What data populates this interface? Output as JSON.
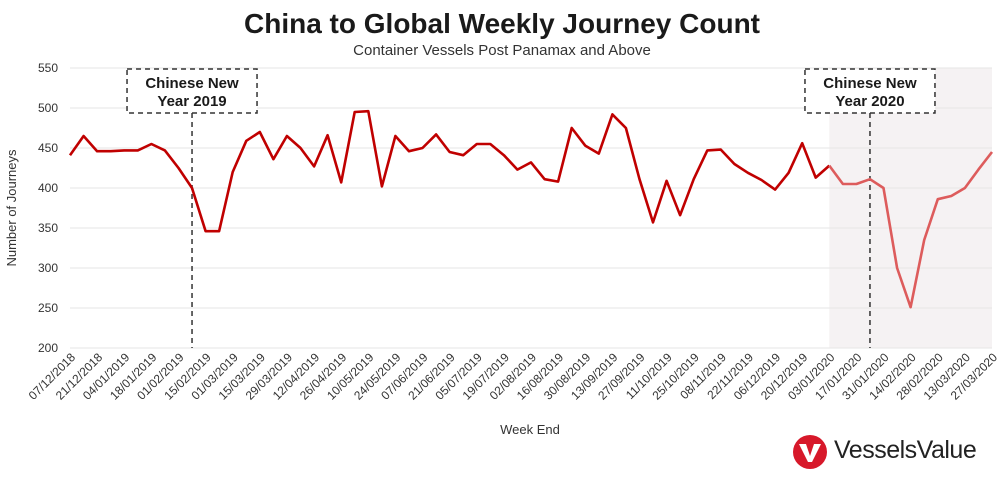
{
  "chart_data": {
    "type": "line",
    "title": "China to Global Weekly Journey Count",
    "subtitle": "Container Vessels Post Panamax and Above",
    "xlabel": "Week End",
    "ylabel": "Number of Journeys",
    "ylim": [
      200,
      550
    ],
    "yticks": [
      200,
      250,
      300,
      350,
      400,
      450,
      500,
      550
    ],
    "grid": "horizontal",
    "x_tick_labels": [
      "07/12/2018",
      "21/12/2018",
      "04/01/2019",
      "18/01/2019",
      "01/02/2019",
      "15/02/2019",
      "01/03/2019",
      "15/03/2019",
      "29/03/2019",
      "12/04/2019",
      "26/04/2019",
      "10/05/2019",
      "24/05/2019",
      "07/06/2019",
      "21/06/2019",
      "05/07/2019",
      "19/07/2019",
      "02/08/2019",
      "16/08/2019",
      "30/08/2019",
      "13/09/2019",
      "27/09/2019",
      "11/10/2019",
      "25/10/2019",
      "08/11/2019",
      "22/11/2019",
      "06/12/2019",
      "20/12/2019",
      "03/01/2020",
      "17/01/2020",
      "31/01/2020",
      "14/02/2020",
      "28/02/2020",
      "13/03/2020",
      "27/03/2020"
    ],
    "x": [
      "07/12/2018",
      "14/12/2018",
      "21/12/2018",
      "28/12/2018",
      "04/01/2019",
      "11/01/2019",
      "18/01/2019",
      "25/01/2019",
      "01/02/2019",
      "08/02/2019",
      "15/02/2019",
      "22/02/2019",
      "01/03/2019",
      "08/03/2019",
      "15/03/2019",
      "22/03/2019",
      "29/03/2019",
      "05/04/2019",
      "12/04/2019",
      "19/04/2019",
      "26/04/2019",
      "03/05/2019",
      "10/05/2019",
      "17/05/2019",
      "24/05/2019",
      "31/05/2019",
      "07/06/2019",
      "14/06/2019",
      "21/06/2019",
      "28/06/2019",
      "05/07/2019",
      "12/07/2019",
      "19/07/2019",
      "26/07/2019",
      "02/08/2019",
      "09/08/2019",
      "16/08/2019",
      "23/08/2019",
      "30/08/2019",
      "06/09/2019",
      "13/09/2019",
      "20/09/2019",
      "27/09/2019",
      "04/10/2019",
      "11/10/2019",
      "18/10/2019",
      "25/10/2019",
      "01/11/2019",
      "08/11/2019",
      "15/11/2019",
      "22/11/2019",
      "29/11/2019",
      "06/12/2019",
      "13/12/2019",
      "20/12/2019",
      "27/12/2019",
      "03/01/2020",
      "10/01/2020",
      "17/01/2020",
      "24/01/2020",
      "31/01/2020",
      "07/02/2020",
      "14/02/2020",
      "21/02/2020",
      "28/02/2020",
      "06/03/2020",
      "13/03/2020",
      "20/03/2020",
      "27/03/2020"
    ],
    "series": [
      {
        "values": [
          441,
          465,
          446,
          446,
          447,
          447,
          455,
          447,
          425,
          400,
          346,
          346,
          420,
          459,
          470,
          436,
          465,
          450,
          427,
          466,
          407,
          495,
          496,
          402,
          465,
          446,
          450,
          467,
          445,
          441,
          455,
          455,
          441,
          423,
          432,
          411,
          408,
          475,
          453,
          443,
          492,
          475,
          411,
          357,
          409,
          366,
          411,
          447,
          448,
          430,
          419,
          410,
          398,
          419,
          456,
          413,
          428,
          405,
          405,
          411,
          400,
          300,
          251,
          335,
          386,
          390,
          400,
          423,
          445
        ]
      }
    ],
    "highlight_from": "03/01/2020",
    "colors": {
      "line_primary": "#c00000",
      "line_recent": "#dd5c5c",
      "shade": "#f5f2f3",
      "grid": "#e6e6e6",
      "brand": "#d7182a"
    },
    "annotations": [
      {
        "x": "08/02/2019",
        "lines": [
          "Chinese New",
          "Year 2019"
        ]
      },
      {
        "x": "24/01/2020",
        "lines": [
          "Chinese New",
          "Year 2020"
        ]
      }
    ]
  },
  "brand": {
    "name": "VesselsValue",
    "icon": "vesselsvalue-logo-icon"
  }
}
